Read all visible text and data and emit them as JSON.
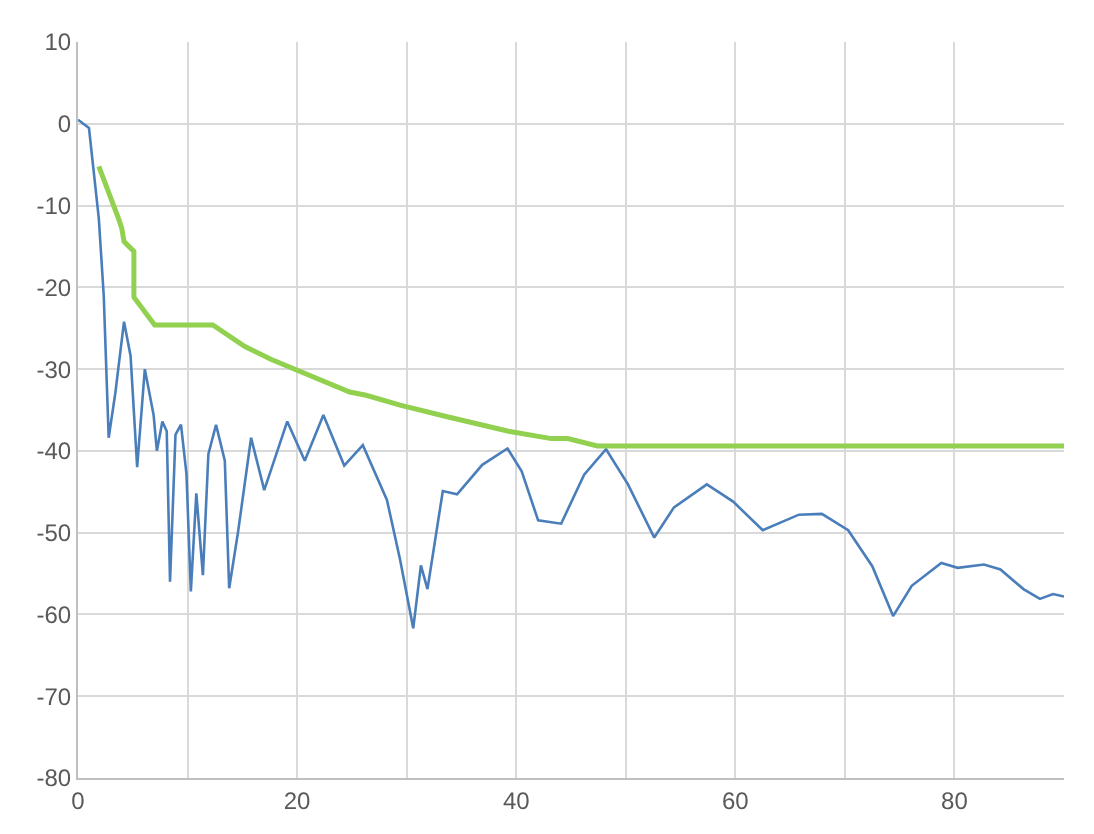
{
  "chart_data": {
    "type": "line",
    "xlim": [
      0,
      90
    ],
    "ylim": [
      -80,
      10
    ],
    "xticks": [
      0,
      {
        "value": 10,
        "label": null
      },
      20,
      {
        "value": 30,
        "label": null
      },
      40,
      {
        "value": 50,
        "label": null
      },
      60,
      {
        "value": 70,
        "label": null
      },
      80
    ],
    "yticks": [
      -80,
      -70,
      -60,
      -50,
      -40,
      -30,
      -20,
      -10,
      0,
      10
    ],
    "grid": true,
    "marker": "none",
    "line_style": "solid",
    "series": [
      {
        "color": "#4a7ebb",
        "x": [
          0,
          1,
          1.9,
          2.35,
          2.8,
          3.4,
          4.2,
          4.8,
          5.4,
          6.1,
          6.9,
          7.2,
          7.7,
          8.1,
          8.4,
          8.9,
          9.4,
          9.9,
          10.3,
          10.8,
          11.4,
          11.9,
          12.6,
          13.4,
          13.8,
          14.6,
          15.8,
          17,
          19.1,
          20.7,
          22.4,
          24.3,
          26,
          28.2,
          29.4,
          30.6,
          31.3,
          31.9,
          33.3,
          34.6,
          36.9,
          39.2,
          40.5,
          42,
          44.1,
          46.2,
          48.2,
          50.2,
          52.6,
          54.4,
          57.4,
          59.8,
          62.5,
          65.8,
          67.9,
          70.3,
          72.5,
          74.4,
          76.1,
          78.8,
          80.3,
          82.7,
          84.2,
          86.3,
          87.8,
          89,
          90
        ],
        "values": [
          0.5,
          -0.5,
          -11.6,
          -21,
          -38.4,
          -33,
          -24.2,
          -28.4,
          -42,
          -30,
          -35.6,
          -40,
          -36.4,
          -37.6,
          -56,
          -38,
          -36.8,
          -42.8,
          -57.2,
          -45.2,
          -55.2,
          -40.4,
          -36.8,
          -41.2,
          -56.8,
          -50,
          -38.4,
          -44.8,
          -36.4,
          -41.2,
          -35.6,
          -41.8,
          -39.3,
          -46,
          -53.3,
          -61.7,
          -54,
          -56.9,
          -44.9,
          -45.3,
          -41.7,
          -39.7,
          -42.5,
          -48.5,
          -48.9,
          -42.9,
          -39.8,
          -44.1,
          -50.6,
          -46.9,
          -44.1,
          -46.2,
          -49.7,
          -47.8,
          -47.7,
          -49.7,
          -54.1,
          -60.2,
          -56.5,
          -53.7,
          -54.3,
          -53.9,
          -54.5,
          -56.9,
          -58.1,
          -57.5,
          -57.8
        ]
      },
      {
        "color": "#92d050",
        "x": [
          1.9,
          3.7,
          4,
          4.2,
          5.1,
          5.1,
          7,
          12.3,
          15.2,
          17.6,
          24.8,
          26.3,
          29.4,
          33.6,
          39.3,
          43.2,
          44.7,
          47.4,
          90
        ],
        "values": [
          -5.2,
          -11.6,
          -12.8,
          -14.4,
          -15.6,
          -21.2,
          -24.6,
          -24.6,
          -27.2,
          -28.8,
          -32.8,
          -33.2,
          -34.4,
          -35.8,
          -37.6,
          -38.5,
          -38.5,
          -39.4,
          -39.4
        ]
      }
    ]
  }
}
